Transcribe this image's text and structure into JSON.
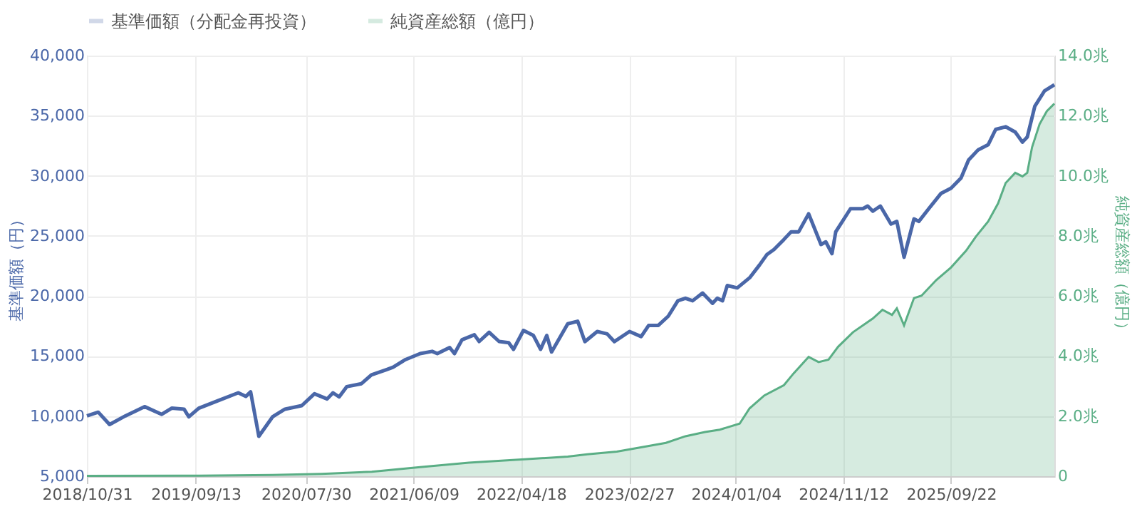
{
  "chart_data": {
    "type": "line",
    "ylabel": "基準価額（円）",
    "y2label": "純資産総額（億円）",
    "legend": "top left",
    "grid": true,
    "xlim": [
      "2018-10-31",
      "2026-07-20"
    ],
    "xticks": [
      {
        "value": "2018-10-31",
        "label": "2018/10/31"
      },
      {
        "value": "2019-09-13",
        "label": "2019/09/13"
      },
      {
        "value": "2020-07-30",
        "label": "2020/07/30"
      },
      {
        "value": "2021-06-09",
        "label": "2021/06/09"
      },
      {
        "value": "2022-04-18",
        "label": "2022/04/18"
      },
      {
        "value": "2023-02-27",
        "label": "2023/02/27"
      },
      {
        "value": "2024-01-04",
        "label": "2024/01/04"
      },
      {
        "value": "2024-11-12",
        "label": "2024/11/12"
      },
      {
        "value": "2025-09-22",
        "label": "2025/09/22"
      }
    ],
    "ylim": [
      5000,
      40000
    ],
    "yticks": [
      {
        "value": 5000,
        "label": "5,000"
      },
      {
        "value": 10000,
        "label": "10,000"
      },
      {
        "value": 15000,
        "label": "15,000"
      },
      {
        "value": 20000,
        "label": "20,000"
      },
      {
        "value": 25000,
        "label": "25,000"
      },
      {
        "value": 30000,
        "label": "30,000"
      },
      {
        "value": 35000,
        "label": "35,000"
      },
      {
        "value": 40000,
        "label": "40,000"
      }
    ],
    "y2lim": [
      0,
      14
    ],
    "y2ticks": [
      {
        "value": 0,
        "label": "0"
      },
      {
        "value": 2,
        "label": "2.0兆"
      },
      {
        "value": 4,
        "label": "4.0兆"
      },
      {
        "value": 6,
        "label": "6.0兆"
      },
      {
        "value": 8,
        "label": "8.0兆"
      },
      {
        "value": 10,
        "label": "10.0兆"
      },
      {
        "value": 12,
        "label": "12.0兆"
      },
      {
        "value": 14,
        "label": "14.0兆"
      }
    ],
    "series": [
      {
        "name": "基準価額（分配金再投資）",
        "axis": "y",
        "color": "#4a67a8",
        "x": [
          "2018-10-31",
          "2018-12-03",
          "2019-01-05",
          "2019-02-20",
          "2019-04-17",
          "2019-06-06",
          "2019-07-05",
          "2019-08-10",
          "2019-08-24",
          "2019-09-22",
          "2019-11-18",
          "2020-01-15",
          "2020-02-06",
          "2020-02-20",
          "2020-03-15",
          "2020-04-24",
          "2020-05-30",
          "2020-07-18",
          "2020-08-24",
          "2020-09-30",
          "2020-10-17",
          "2020-11-04",
          "2020-11-26",
          "2021-01-08",
          "2021-02-06",
          "2021-03-20",
          "2021-04-10",
          "2021-05-16",
          "2021-06-28",
          "2021-08-02",
          "2021-08-17",
          "2021-09-22",
          "2021-10-06",
          "2021-10-28",
          "2021-12-03",
          "2021-12-17",
          "2022-01-15",
          "2022-02-13",
          "2022-03-13",
          "2022-03-27",
          "2022-04-25",
          "2022-05-24",
          "2022-06-14",
          "2022-07-02",
          "2022-07-16",
          "2022-09-01",
          "2022-09-30",
          "2022-10-21",
          "2022-11-26",
          "2022-12-25",
          "2023-01-15",
          "2023-02-28",
          "2023-04-03",
          "2023-04-25",
          "2023-05-23",
          "2023-06-21",
          "2023-07-19",
          "2023-08-10",
          "2023-08-31",
          "2023-09-29",
          "2023-10-28",
          "2023-11-11",
          "2023-11-26",
          "2023-12-10",
          "2024-01-08",
          "2024-02-13",
          "2024-03-13",
          "2024-04-03",
          "2024-04-24",
          "2024-05-23",
          "2024-06-13",
          "2024-07-05",
          "2024-08-03",
          "2024-09-08",
          "2024-09-22",
          "2024-10-10",
          "2024-10-21",
          "2024-12-03",
          "2025-01-08",
          "2025-01-22",
          "2025-02-06",
          "2025-02-28",
          "2025-03-31",
          "2025-04-17",
          "2025-05-08",
          "2025-06-06",
          "2025-06-20",
          "2025-07-19",
          "2025-08-24",
          "2025-09-22",
          "2025-10-21",
          "2025-11-12",
          "2025-12-10",
          "2026-01-08",
          "2026-01-30",
          "2026-02-28",
          "2026-03-28",
          "2026-04-18",
          "2026-05-02",
          "2026-05-24",
          "2026-06-21",
          "2026-07-20"
        ],
        "values": [
          10020,
          10330,
          9300,
          10020,
          10790,
          10150,
          10660,
          10580,
          9940,
          10660,
          11300,
          11940,
          11640,
          12020,
          8320,
          9940,
          10580,
          10870,
          11860,
          11430,
          11940,
          11600,
          12450,
          12700,
          13430,
          13850,
          14070,
          14700,
          15200,
          15390,
          15200,
          15710,
          15200,
          16350,
          16770,
          16210,
          16980,
          16210,
          16110,
          15560,
          17130,
          16710,
          15560,
          16710,
          15340,
          17680,
          17900,
          16200,
          17040,
          16840,
          16200,
          17040,
          16620,
          17550,
          17550,
          18320,
          19600,
          19810,
          19600,
          20240,
          19390,
          19810,
          19600,
          20870,
          20670,
          21510,
          22580,
          23430,
          23860,
          24700,
          25340,
          25340,
          26840,
          24280,
          24500,
          23520,
          25340,
          27260,
          27260,
          27480,
          27050,
          27480,
          25980,
          26200,
          23220,
          26410,
          26200,
          27260,
          28540,
          28970,
          29810,
          31310,
          32160,
          32580,
          33860,
          34080,
          33640,
          32800,
          33220,
          35780,
          37050,
          37570
        ]
      },
      {
        "name": "純資産総額（億円）",
        "type": "area",
        "axis": "y2",
        "color": "#5aae85",
        "x": [
          "2018-10-31",
          "2019-09-22",
          "2020-04-24",
          "2020-09-14",
          "2021-02-07",
          "2021-06-28",
          "2021-11-17",
          "2022-04-11",
          "2022-09-01",
          "2022-10-28",
          "2023-01-22",
          "2023-04-17",
          "2023-06-14",
          "2023-08-10",
          "2023-10-06",
          "2023-11-18",
          "2024-01-15",
          "2024-02-13",
          "2024-03-27",
          "2024-05-23",
          "2024-06-20",
          "2024-08-03",
          "2024-09-01",
          "2024-09-30",
          "2024-10-28",
          "2024-12-10",
          "2025-02-06",
          "2025-03-06",
          "2025-04-03",
          "2025-04-17",
          "2025-05-08",
          "2025-06-06",
          "2025-06-28",
          "2025-08-10",
          "2025-09-22",
          "2025-11-05",
          "2025-12-03",
          "2026-01-08",
          "2026-02-06",
          "2026-02-28",
          "2026-03-28",
          "2026-04-18",
          "2026-05-02",
          "2026-05-16",
          "2026-06-07",
          "2026-06-28",
          "2026-07-20"
        ],
        "values": [
          0.01,
          0.02,
          0.04,
          0.08,
          0.15,
          0.3,
          0.45,
          0.55,
          0.65,
          0.73,
          0.82,
          0.99,
          1.11,
          1.33,
          1.47,
          1.55,
          1.75,
          2.26,
          2.69,
          3.03,
          3.42,
          3.97,
          3.8,
          3.88,
          4.31,
          4.79,
          5.25,
          5.54,
          5.37,
          5.59,
          5.02,
          5.93,
          6.01,
          6.53,
          6.95,
          7.51,
          7.97,
          8.48,
          9.08,
          9.76,
          10.1,
          9.98,
          10.1,
          10.95,
          11.72,
          12.15,
          12.4
        ]
      }
    ]
  }
}
